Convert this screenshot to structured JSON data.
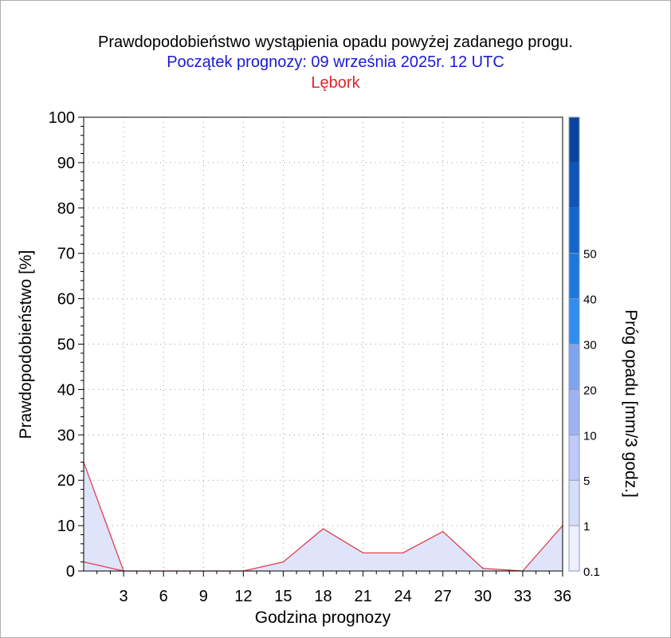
{
  "titles": {
    "line1": "Prawdopodobieństwo wystąpienia opadu powyżej zadanego progu.",
    "line2": "Początek prognozy: 09 września 2025r. 12 UTC",
    "line3": "Lębork"
  },
  "colors": {
    "title_line2": "#1a1ad4",
    "title_line3": "#e0242c",
    "series_line": "#e0404a",
    "fill": "#dfe4fb",
    "grid": "#9a9a9a"
  },
  "chart_data": {
    "type": "area",
    "title": "Prawdopodobieństwo wystąpienia opadu powyżej zadanego progu.",
    "xlabel": "Godzina prognozy",
    "ylabel": "Prawdopodobieństwo [%]",
    "xlim": [
      0,
      36
    ],
    "ylim": [
      0,
      100
    ],
    "x_ticks": [
      3,
      6,
      9,
      12,
      15,
      18,
      21,
      24,
      27,
      30,
      33,
      36
    ],
    "y_ticks": [
      0,
      10,
      20,
      30,
      40,
      50,
      60,
      70,
      80,
      90,
      100
    ],
    "grid": true,
    "series": [
      {
        "x": [
          0,
          3,
          6,
          9,
          12,
          15,
          18,
          21,
          24,
          27,
          30,
          33,
          36
        ],
        "values": [
          24,
          0,
          0,
          0,
          0,
          2,
          9.3,
          4,
          4,
          8.7,
          0.6,
          0,
          10
        ]
      },
      {
        "x": [
          0,
          3
        ],
        "values": [
          2,
          0
        ]
      }
    ],
    "colorbar": {
      "label": "Próg opadu [mm/3 godz.]",
      "tick_labels": [
        "0.1",
        "1",
        "5",
        "10",
        "20",
        "30",
        "40",
        "50"
      ],
      "colors": [
        "#eef0fd",
        "#d7defb",
        "#bfcaf8",
        "#9fb2f3",
        "#7fa4ee",
        "#2f8df0",
        "#1e78dc",
        "#1466cc",
        "#0e55b8",
        "#0a44a0"
      ]
    }
  }
}
